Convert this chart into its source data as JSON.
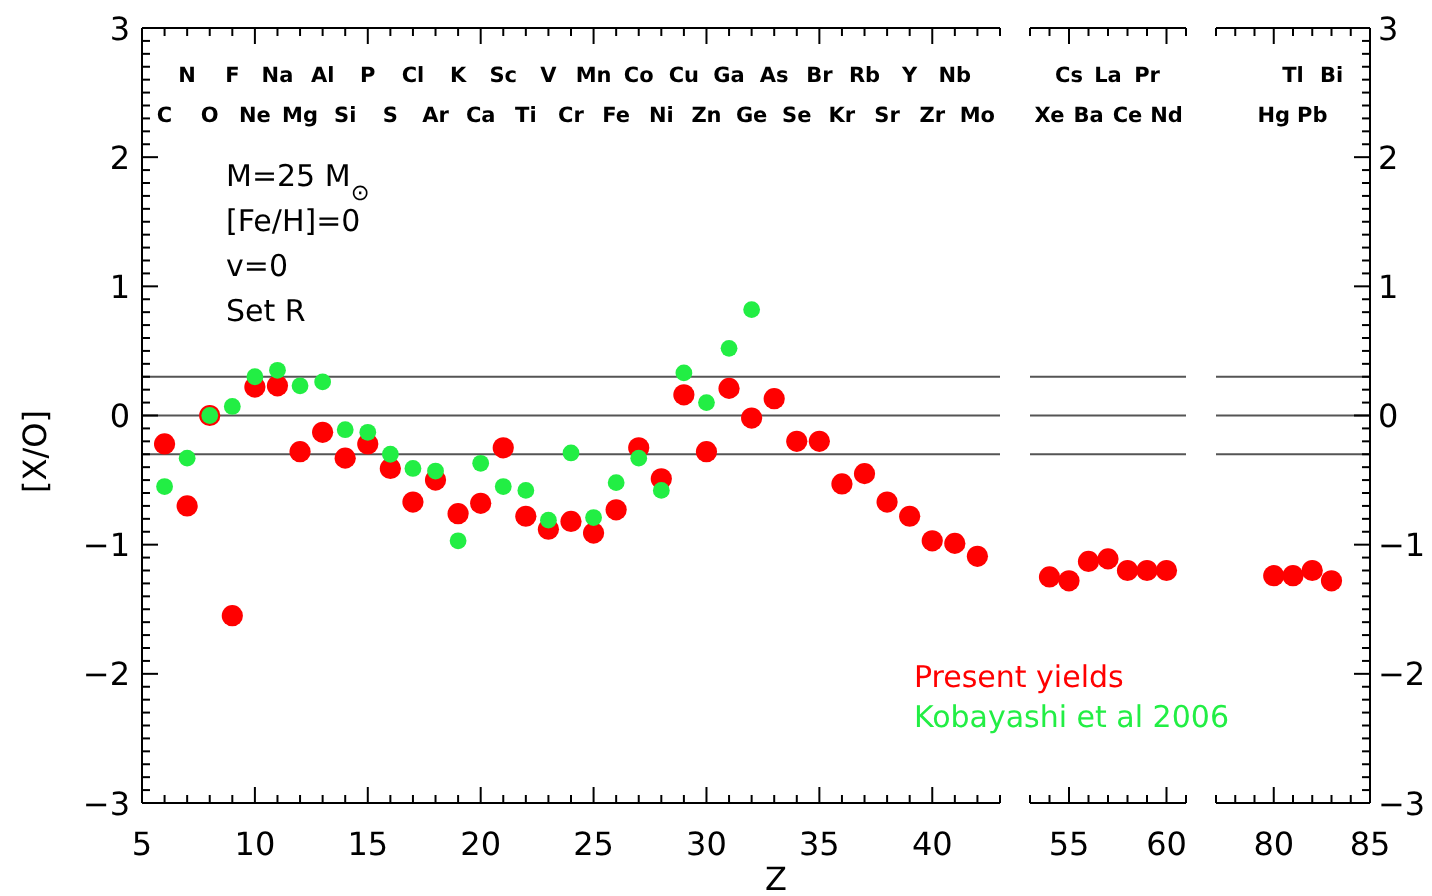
{
  "chart_data": [
    {
      "type": "scatter",
      "xlabel": "Z",
      "ylabel": "[X/O]",
      "marker": "circle",
      "legend": "bottom right",
      "annotations": [
        "M=25 M$_{⊙}$",
        "[Fe/H]=0",
        "v=0",
        "Set R",
        "C",
        "N",
        "O",
        "F",
        "Ne",
        "Na",
        "Mg",
        "Al",
        "Si",
        "P",
        "S",
        "Cl",
        "Ar",
        "K",
        "Ca",
        "Sc",
        "Ti",
        "V",
        "Cr",
        "Mn",
        "Fe",
        "Co",
        "Ni",
        "Cu",
        "Zn",
        "Ga",
        "Ge",
        "As",
        "Se",
        "Br",
        "Kr",
        "Rb",
        "Sr",
        "Y",
        "Zr",
        "Nb",
        "Mo"
      ],
      "xlim": [
        5,
        43
      ],
      "xticks": [
        5,
        {
          "value": 6,
          "label": null
        },
        {
          "value": 7,
          "label": null
        },
        {
          "value": 8,
          "label": null
        },
        {
          "value": 9,
          "label": null
        },
        10,
        {
          "value": 11,
          "label": null
        },
        {
          "value": 12,
          "label": null
        },
        {
          "value": 13,
          "label": null
        },
        {
          "value": 14,
          "label": null
        },
        15,
        {
          "value": 16,
          "label": null
        },
        {
          "value": 17,
          "label": null
        },
        {
          "value": 18,
          "label": null
        },
        {
          "value": 19,
          "label": null
        },
        20,
        {
          "value": 21,
          "label": null
        },
        {
          "value": 22,
          "label": null
        },
        {
          "value": 23,
          "label": null
        },
        {
          "value": 24,
          "label": null
        },
        25,
        {
          "value": 26,
          "label": null
        },
        {
          "value": 27,
          "label": null
        },
        {
          "value": 28,
          "label": null
        },
        {
          "value": 29,
          "label": null
        },
        30,
        {
          "value": 31,
          "label": null
        },
        {
          "value": 32,
          "label": null
        },
        {
          "value": 33,
          "label": null
        },
        {
          "value": 34,
          "label": null
        },
        35,
        {
          "value": 36,
          "label": null
        },
        {
          "value": 37,
          "label": null
        },
        {
          "value": 38,
          "label": null
        },
        {
          "value": 39,
          "label": null
        },
        40,
        {
          "value": 41,
          "label": null
        },
        {
          "value": 42,
          "label": null
        },
        {
          "value": 43,
          "label": null
        }
      ],
      "ylim": [
        -3,
        3
      ],
      "yticks": [
        -3,
        {
          "value": -2.9,
          "label": null
        },
        {
          "value": -2.8,
          "label": null
        },
        {
          "value": -2.7,
          "label": null
        },
        {
          "value": -2.6,
          "label": null
        },
        {
          "value": -2.5,
          "label": null
        },
        {
          "value": -2.4,
          "label": null
        },
        {
          "value": -2.3,
          "label": null
        },
        {
          "value": -2.2,
          "label": null
        },
        {
          "value": -2.1,
          "label": null
        },
        -2,
        {
          "value": -1.9,
          "label": null
        },
        {
          "value": -1.8,
          "label": null
        },
        {
          "value": -1.7,
          "label": null
        },
        {
          "value": -1.6,
          "label": null
        },
        {
          "value": -1.5,
          "label": null
        },
        {
          "value": -1.4,
          "label": null
        },
        {
          "value": -1.3,
          "label": null
        },
        {
          "value": -1.2,
          "label": null
        },
        {
          "value": -1.1,
          "label": null
        },
        -1,
        {
          "value": -0.9,
          "label": null
        },
        {
          "value": -0.8,
          "label": null
        },
        {
          "value": -0.7,
          "label": null
        },
        {
          "value": -0.6,
          "label": null
        },
        {
          "value": -0.5,
          "label": null
        },
        {
          "value": -0.4,
          "label": null
        },
        {
          "value": -0.3,
          "label": null
        },
        {
          "value": -0.2,
          "label": null
        },
        {
          "value": -0.1,
          "label": null
        },
        0,
        {
          "value": 0.1,
          "label": null
        },
        {
          "value": 0.2,
          "label": null
        },
        {
          "value": 0.3,
          "label": null
        },
        {
          "value": 0.4,
          "label": null
        },
        {
          "value": 0.5,
          "label": null
        },
        {
          "value": 0.6,
          "label": null
        },
        {
          "value": 0.7,
          "label": null
        },
        {
          "value": 0.8,
          "label": null
        },
        {
          "value": 0.9,
          "label": null
        },
        1,
        {
          "value": 1.1,
          "label": null
        },
        {
          "value": 1.2,
          "label": null
        },
        {
          "value": 1.3,
          "label": null
        },
        {
          "value": 1.4,
          "label": null
        },
        {
          "value": 1.5,
          "label": null
        },
        {
          "value": 1.6,
          "label": null
        },
        {
          "value": 1.7,
          "label": null
        },
        {
          "value": 1.8,
          "label": null
        },
        {
          "value": 1.9,
          "label": null
        },
        2,
        {
          "value": 2.1,
          "label": null
        },
        {
          "value": 2.2,
          "label": null
        },
        {
          "value": 2.3,
          "label": null
        },
        {
          "value": 2.4,
          "label": null
        },
        {
          "value": 2.5,
          "label": null
        },
        {
          "value": 2.6,
          "label": null
        },
        {
          "value": 2.7,
          "label": null
        },
        {
          "value": 2.8,
          "label": null
        },
        {
          "value": 2.9,
          "label": null
        },
        3
      ],
      "ref_lines": [
        {
          "axis": "y",
          "value": 0.3,
          "color": "#555555"
        },
        {
          "axis": "y",
          "value": 0,
          "color": "#555555"
        },
        {
          "axis": "y",
          "value": -0.3,
          "color": "#555555"
        }
      ],
      "series": [
        {
          "name": "Present yields",
          "color": "#ff0000",
          "x": [
            6,
            7,
            8,
            9,
            10,
            11,
            12,
            13,
            14,
            15,
            16,
            17,
            18,
            19,
            20,
            21,
            22,
            23,
            24,
            25,
            26,
            27,
            28,
            29,
            30,
            31,
            32,
            33,
            34,
            35,
            36,
            37,
            38,
            39,
            40,
            41,
            42
          ],
          "values": [
            -0.22,
            -0.7,
            0.0,
            -1.55,
            0.22,
            0.23,
            -0.28,
            -0.13,
            -0.33,
            -0.22,
            -0.41,
            -0.67,
            -0.5,
            -0.76,
            -0.68,
            -0.25,
            -0.78,
            -0.88,
            -0.82,
            -0.91,
            -0.73,
            -0.25,
            -0.49,
            0.16,
            -0.28,
            0.21,
            -0.02,
            0.13,
            -0.2,
            -0.2,
            -0.53,
            -0.45,
            -0.67,
            -0.78,
            -0.97,
            -0.99,
            -1.09
          ]
        },
        {
          "name": "Kobayashi et al 2006",
          "color": "#22ee44",
          "x": [
            6,
            7,
            8,
            9,
            10,
            11,
            12,
            13,
            14,
            15,
            16,
            17,
            18,
            19,
            20,
            21,
            22,
            23,
            24,
            25,
            26,
            27,
            28,
            29,
            30,
            31,
            32
          ],
          "values": [
            -0.55,
            -0.33,
            0.0,
            0.07,
            0.3,
            0.35,
            0.23,
            0.26,
            -0.11,
            -0.13,
            -0.3,
            -0.41,
            -0.43,
            -0.97,
            -0.37,
            -0.55,
            -0.58,
            -0.81,
            -0.29,
            -0.79,
            -0.52,
            -0.33,
            -0.58,
            0.33,
            0.1,
            0.52,
            0.82
          ]
        }
      ]
    },
    {
      "type": "scatter",
      "marker": "circle",
      "tick_labels": "x",
      "annotations": [
        "Xe",
        "Cs",
        "Ba",
        "La",
        "Ce",
        "Pr",
        "Nd"
      ],
      "xlim": [
        53,
        61
      ],
      "xticks": [
        {
          "value": 53,
          "label": null
        },
        {
          "value": 54,
          "label": null
        },
        55,
        {
          "value": 56,
          "label": null
        },
        {
          "value": 57,
          "label": null
        },
        {
          "value": 58,
          "label": null
        },
        {
          "value": 59,
          "label": null
        },
        60,
        {
          "value": 61,
          "label": null
        }
      ],
      "ylim": [
        -3,
        3
      ],
      "ref_lines": [
        {
          "axis": "y",
          "value": 0.3,
          "color": "#555555"
        },
        {
          "axis": "y",
          "value": 0,
          "color": "#555555"
        },
        {
          "axis": "y",
          "value": -0.3,
          "color": "#555555"
        }
      ],
      "series": [
        {
          "color": "#ff0000",
          "x": [
            54,
            55,
            56,
            57,
            58,
            59,
            60
          ],
          "values": [
            -1.25,
            -1.28,
            -1.13,
            -1.11,
            -1.2,
            -1.2,
            -1.2
          ]
        }
      ]
    },
    {
      "type": "scatter",
      "marker": "circle",
      "annotations": [
        "Hg",
        "Tl",
        "Pb",
        "Bi"
      ],
      "xlim": [
        77,
        85
      ],
      "xticks": [
        {
          "value": 77,
          "label": null
        },
        {
          "value": 78,
          "label": null
        },
        {
          "value": 79,
          "label": null
        },
        80,
        {
          "value": 81,
          "label": null
        },
        {
          "value": 82,
          "label": null
        },
        {
          "value": 83,
          "label": null
        },
        {
          "value": 84,
          "label": null
        },
        85
      ],
      "y2lim": [
        -3,
        3
      ],
      "y2ticks": [
        -3,
        {
          "value": -2.9,
          "label": null
        },
        {
          "value": -2.8,
          "label": null
        },
        {
          "value": -2.7,
          "label": null
        },
        {
          "value": -2.6,
          "label": null
        },
        {
          "value": -2.5,
          "label": null
        },
        {
          "value": -2.4,
          "label": null
        },
        {
          "value": -2.3,
          "label": null
        },
        {
          "value": -2.2,
          "label": null
        },
        {
          "value": -2.1,
          "label": null
        },
        -2,
        {
          "value": -1.9,
          "label": null
        },
        {
          "value": -1.8,
          "label": null
        },
        {
          "value": -1.7,
          "label": null
        },
        {
          "value": -1.6,
          "label": null
        },
        {
          "value": -1.5,
          "label": null
        },
        {
          "value": -1.4,
          "label": null
        },
        {
          "value": -1.3,
          "label": null
        },
        {
          "value": -1.2,
          "label": null
        },
        {
          "value": -1.1,
          "label": null
        },
        -1,
        {
          "value": -0.9,
          "label": null
        },
        {
          "value": -0.8,
          "label": null
        },
        {
          "value": -0.7,
          "label": null
        },
        {
          "value": -0.6,
          "label": null
        },
        {
          "value": -0.5,
          "label": null
        },
        {
          "value": -0.4,
          "label": null
        },
        {
          "value": -0.3,
          "label": null
        },
        {
          "value": -0.2,
          "label": null
        },
        {
          "value": -0.1,
          "label": null
        },
        0,
        {
          "value": 0.1,
          "label": null
        },
        {
          "value": 0.2,
          "label": null
        },
        {
          "value": 0.3,
          "label": null
        },
        {
          "value": 0.4,
          "label": null
        },
        {
          "value": 0.5,
          "label": null
        },
        {
          "value": 0.6,
          "label": null
        },
        {
          "value": 0.7,
          "label": null
        },
        {
          "value": 0.8,
          "label": null
        },
        {
          "value": 0.9,
          "label": null
        },
        1,
        {
          "value": 1.1,
          "label": null
        },
        {
          "value": 1.2,
          "label": null
        },
        {
          "value": 1.3,
          "label": null
        },
        {
          "value": 1.4,
          "label": null
        },
        {
          "value": 1.5,
          "label": null
        },
        {
          "value": 1.6,
          "label": null
        },
        {
          "value": 1.7,
          "label": null
        },
        {
          "value": 1.8,
          "label": null
        },
        {
          "value": 1.9,
          "label": null
        },
        2,
        {
          "value": 2.1,
          "label": null
        },
        {
          "value": 2.2,
          "label": null
        },
        {
          "value": 2.3,
          "label": null
        },
        {
          "value": 2.4,
          "label": null
        },
        {
          "value": 2.5,
          "label": null
        },
        {
          "value": 2.6,
          "label": null
        },
        {
          "value": 2.7,
          "label": null
        },
        {
          "value": 2.8,
          "label": null
        },
        {
          "value": 2.9,
          "label": null
        },
        3
      ],
      "ref_lines": [
        {
          "axis": "y2",
          "value": 0.3,
          "color": "#555555"
        },
        {
          "axis": "y2",
          "value": 0,
          "color": "#555555"
        },
        {
          "axis": "y2",
          "value": -0.3,
          "color": "#555555"
        }
      ],
      "series": [
        {
          "color": "#ff0000",
          "axis": "y2",
          "x": [
            80,
            81,
            82,
            83
          ],
          "values": [
            -1.24,
            -1.24,
            -1.2,
            -1.28
          ]
        }
      ]
    }
  ]
}
